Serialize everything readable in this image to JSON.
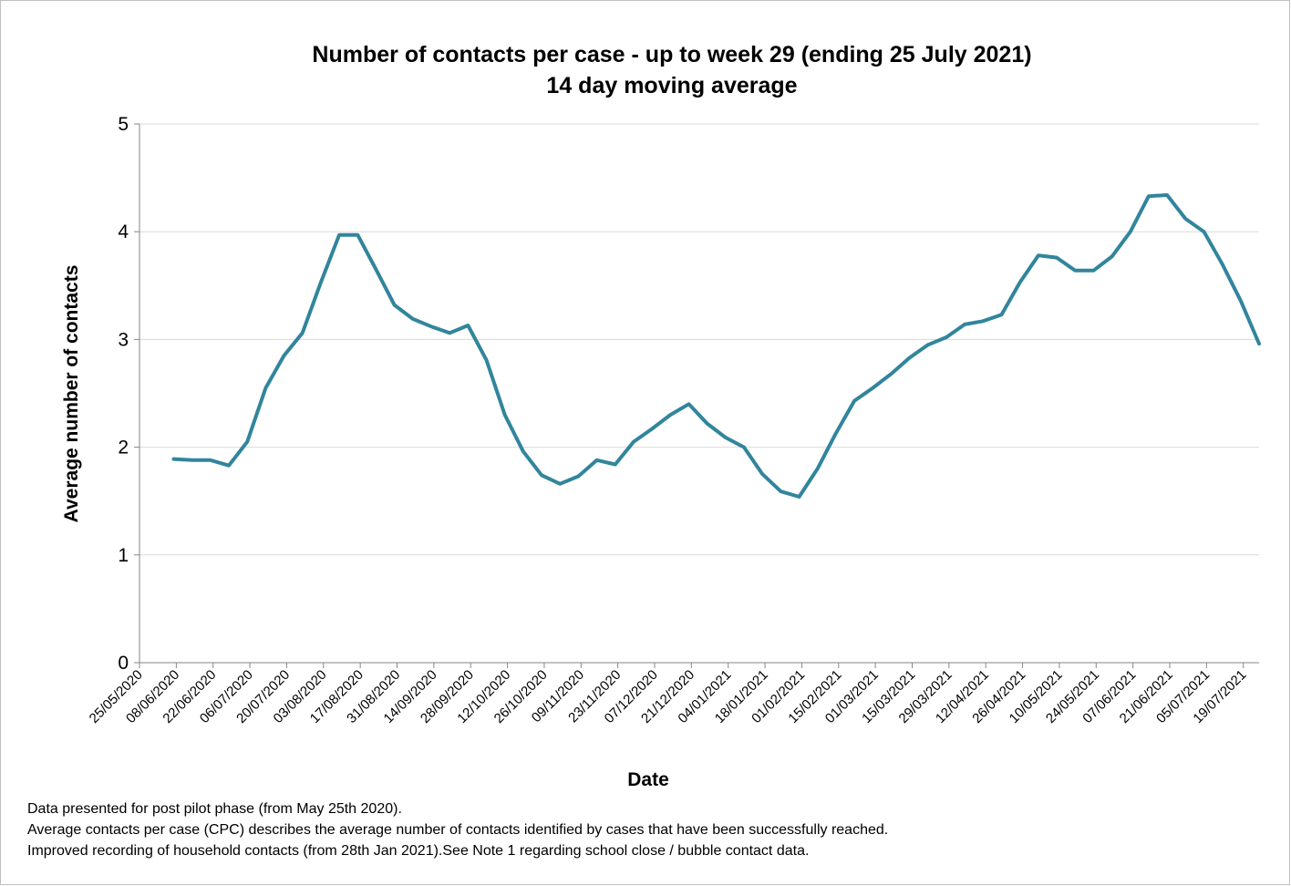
{
  "chart_data": {
    "type": "line",
    "title": "Number of contacts per case - up to week 29 (ending 25 July 2021)",
    "subtitle": "14 day moving average",
    "x_label": "Date",
    "y_label": "Average number of contacts",
    "x": [
      "07/06/2020",
      "14/06/2020",
      "21/06/2020",
      "28/06/2020",
      "05/07/2020",
      "12/07/2020",
      "19/07/2020",
      "26/07/2020",
      "02/08/2020",
      "09/08/2020",
      "16/08/2020",
      "23/08/2020",
      "30/08/2020",
      "06/09/2020",
      "13/09/2020",
      "20/09/2020",
      "27/09/2020",
      "04/10/2020",
      "11/10/2020",
      "18/10/2020",
      "25/10/2020",
      "01/11/2020",
      "08/11/2020",
      "15/11/2020",
      "22/11/2020",
      "29/11/2020",
      "06/12/2020",
      "13/12/2020",
      "20/12/2020",
      "27/12/2020",
      "03/01/2021",
      "10/01/2021",
      "17/01/2021",
      "24/01/2021",
      "31/01/2021",
      "07/02/2021",
      "14/02/2021",
      "21/02/2021",
      "28/02/2021",
      "07/03/2021",
      "14/03/2021",
      "21/03/2021",
      "28/03/2021",
      "04/04/2021",
      "11/04/2021",
      "18/04/2021",
      "25/04/2021",
      "02/05/2021",
      "09/05/2021",
      "16/05/2021",
      "23/05/2021",
      "30/05/2021",
      "06/06/2021",
      "13/06/2021",
      "20/06/2021",
      "27/06/2021",
      "04/07/2021",
      "11/07/2021",
      "18/07/2021",
      "25/07/2021"
    ],
    "series": [
      {
        "name": "Average number of contacts",
        "color": "#31859c",
        "values": [
          1.89,
          1.88,
          1.88,
          1.83,
          2.05,
          2.55,
          2.85,
          3.06,
          3.53,
          3.97,
          3.97,
          3.65,
          3.32,
          3.19,
          3.12,
          3.06,
          3.13,
          2.81,
          2.3,
          1.96,
          1.74,
          1.66,
          1.73,
          1.88,
          1.84,
          2.05,
          2.17,
          2.3,
          2.4,
          2.22,
          2.09,
          2.0,
          1.75,
          1.59,
          1.54,
          1.8,
          2.13,
          2.43,
          2.55,
          2.68,
          2.83,
          2.95,
          3.02,
          3.14,
          3.17,
          3.23,
          3.53,
          3.78,
          3.76,
          3.64,
          3.64,
          3.77,
          4.0,
          4.33,
          4.34,
          4.12,
          4.0,
          3.7,
          3.36,
          2.96
        ]
      }
    ],
    "xlim": [
      "25/05/2020",
      "25/07/2021"
    ],
    "xticks": [
      "25/05/2020",
      "08/06/2020",
      "22/06/2020",
      "06/07/2020",
      "20/07/2020",
      "03/08/2020",
      "17/08/2020",
      "31/08/2020",
      "14/09/2020",
      "28/09/2020",
      "12/10/2020",
      "26/10/2020",
      "09/11/2020",
      "23/11/2020",
      "07/12/2020",
      "21/12/2020",
      "04/01/2021",
      "18/01/2021",
      "01/02/2021",
      "15/02/2021",
      "01/03/2021",
      "15/03/2021",
      "29/03/2021",
      "12/04/2021",
      "26/04/2021",
      "10/05/2021",
      "24/05/2021",
      "07/06/2021",
      "21/06/2021",
      "05/07/2021",
      "19/07/2021"
    ],
    "ylim": [
      0,
      5
    ],
    "yticks": [
      0,
      1,
      2,
      3,
      4,
      5
    ],
    "grid": true,
    "notes": [
      "Data presented  for post pilot phase (from May 25th 2020).",
      "Average contacts per case (CPC) describes the average number of contacts identified by cases that have been successfully reached.",
      "Improved recording of household contacts (from 28th Jan 2021).See Note 1 regarding school close / bubble contact data."
    ]
  }
}
